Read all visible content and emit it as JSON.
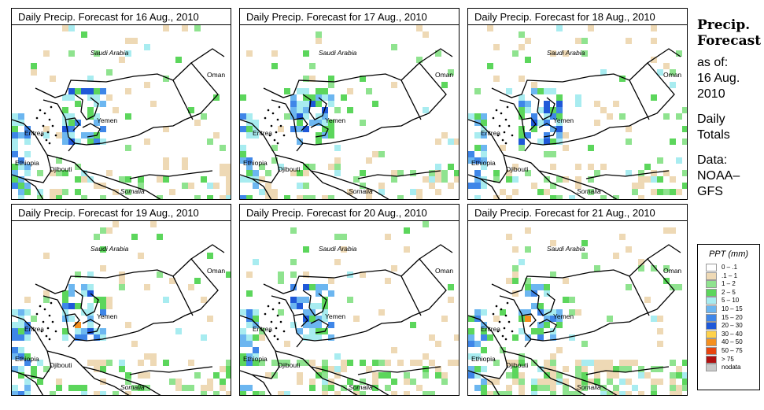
{
  "panels": [
    {
      "title": "Daily Precip. Forecast for  16 Aug., 2010"
    },
    {
      "title": "Daily Precip. Forecast for  17 Aug., 2010"
    },
    {
      "title": "Daily Precip. Forecast for  18 Aug., 2010"
    },
    {
      "title": "Daily Precip. Forecast for  19 Aug., 2010"
    },
    {
      "title": "Daily Precip. Forecast for  20 Aug., 2010"
    },
    {
      "title": "Daily Precip. Forecast for  21 Aug., 2010"
    }
  ],
  "map_labels": {
    "saudi_arabia": "Saudi Arabia",
    "oman": "Oman",
    "yemen": "Yemen",
    "eritrea": "Eritrea",
    "ethiopia": "Ethiopia",
    "djibouti": "Djibouti",
    "somalia": "Somalia"
  },
  "side": {
    "title_line1": "Precip.",
    "title_line2": "Forecast",
    "asof_line1": "as of:",
    "asof_line2": "16 Aug.",
    "asof_line3": "2010",
    "daily_line1": "Daily",
    "daily_line2": "Totals",
    "data_line1": "Data:",
    "data_line2": "NOAA–",
    "data_line3": "GFS"
  },
  "legend": {
    "title": "PPT (mm)",
    "items": [
      {
        "label": "0 – .1",
        "color": "#ffffff"
      },
      {
        "label": ".1 – 1",
        "color": "#eed9b5"
      },
      {
        "label": "1 – 2",
        "color": "#8fe38f"
      },
      {
        "label": "2 – 5",
        "color": "#5cd65c"
      },
      {
        "label": "5 – 10",
        "color": "#a8ecf0"
      },
      {
        "label": "10 – 15",
        "color": "#6cb6f0"
      },
      {
        "label": "15 – 20",
        "color": "#3f86e8"
      },
      {
        "label": "20 – 30",
        "color": "#1f58d8"
      },
      {
        "label": "30 – 40",
        "color": "#ffd24a"
      },
      {
        "label": "40 – 50",
        "color": "#f5901f"
      },
      {
        "label": "50 – 75",
        "color": "#e8450f"
      },
      {
        "label": "> 75",
        "color": "#b01010"
      },
      {
        "label": "nodata",
        "color": "#c8c8c8"
      }
    ]
  },
  "colors": {
    "border": "#000000",
    "background": "#ffffff"
  }
}
